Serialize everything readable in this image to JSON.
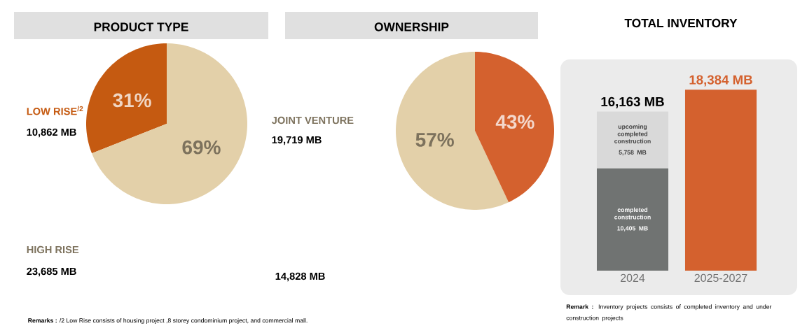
{
  "chart_data": [
    {
      "type": "pie",
      "title": "PRODUCT TYPE",
      "categories": [
        "LOW RISE$^{/2}$",
        "HIGH RISE"
      ],
      "values": [
        31,
        69
      ],
      "colors": [
        "#c55a11",
        "#e3d0a9"
      ],
      "value_labels": [
        "31%",
        "69%"
      ],
      "annotations": [
        "10,862 MB",
        "23,685 MB",
        "**Remarks :** /2 Low Rise consists of housing project ,8 storey condominium project, and commercial mall."
      ]
    },
    {
      "type": "pie",
      "title": "OWNERSHIP",
      "categories": [
        "JOINT VENTURE",
        null
      ],
      "values": [
        57,
        43
      ],
      "colors": [
        "#e3d0a9",
        "#d4612e"
      ],
      "value_labels": [
        "57%",
        "43%"
      ],
      "annotations": [
        "19,719 MB",
        "14,828 MB"
      ]
    },
    {
      "type": "bar",
      "title": "TOTAL INVENTORY",
      "categories": [
        "2024",
        "2025-2027"
      ],
      "stacked": true,
      "series": [
        {
          "name": "completed construction",
          "color": "#707372",
          "values": [
            10405,
            null
          ],
          "value_labels": [
            "10,405 MB",
            null
          ]
        },
        {
          "name": "upcoming completed construction",
          "color": "#d9d9d9",
          "values": [
            5758,
            null
          ],
          "value_labels": [
            "5,758 MB",
            null
          ]
        },
        {
          "color": "#d4612e",
          "values": [
            null,
            18384
          ]
        }
      ],
      "totals": [
        "16,163 MB",
        "18,384 MB"
      ],
      "annotations": [
        "**Remark :** Inventory projects consists of completed inventory and under construction projects"
      ]
    }
  ]
}
